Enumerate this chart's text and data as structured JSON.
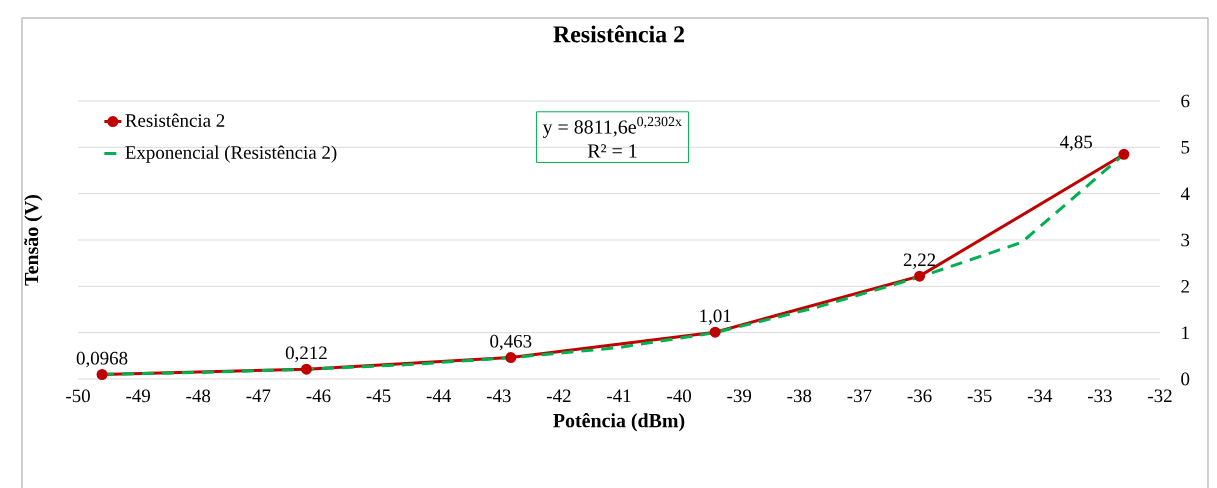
{
  "chart_data": {
    "type": "line",
    "title": "Resistência 2",
    "xlabel": "Potência (dBm)",
    "ylabel": "Tensão (V)",
    "series": [
      {
        "name": "Resistência 2",
        "color": "#c00000",
        "marker": "circle",
        "line_style": "solid",
        "x": [
          -49.6,
          -46.2,
          -42.8,
          -39.4,
          -36.0,
          -32.6
        ],
        "values": [
          0.0968,
          0.212,
          0.463,
          1.01,
          2.22,
          4.85
        ],
        "value_labels": [
          "0,0968",
          "0,212",
          "0,463",
          "1,01",
          "2,22",
          "4,85"
        ]
      },
      {
        "name": "Exponencial (Resistência 2)",
        "color": "#00b050",
        "marker": "none",
        "line_style": "dashed",
        "x": [
          -49.6,
          -48.0,
          -46.2,
          -44.5,
          -42.8,
          -41.0,
          -39.4,
          -37.7,
          -36.0,
          -34.3,
          -32.6
        ],
        "values": [
          0.1,
          0.14,
          0.21,
          0.31,
          0.46,
          0.68,
          1.0,
          1.55,
          2.2,
          2.95,
          4.85
        ]
      }
    ],
    "annotations": [
      "y = 8811,6e$^{0,2302x}$",
      "R² = 1"
    ],
    "xlim": [
      -50,
      -32
    ],
    "xticks": [
      -50,
      -49,
      -48,
      -47,
      -46,
      -45,
      -44,
      -43,
      -42,
      -41,
      -40,
      -39,
      -38,
      -37,
      -36,
      -35,
      -34,
      -33,
      -32
    ],
    "ylim": [
      0,
      6
    ],
    "yticks": [
      0,
      1,
      2,
      3,
      4,
      5,
      6
    ],
    "grid": "y",
    "legend": "top left"
  }
}
